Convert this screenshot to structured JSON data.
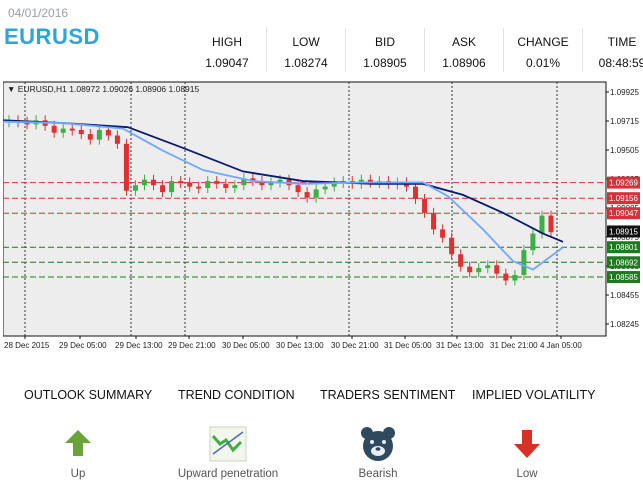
{
  "header": {
    "date": "04/01/2016",
    "symbol": "EURUSD",
    "quotes": [
      {
        "label": "HIGH",
        "value": "1.09047"
      },
      {
        "label": "LOW",
        "value": "1.08274"
      },
      {
        "label": "BID",
        "value": "1.08905"
      },
      {
        "label": "ASK",
        "value": "1.08906"
      },
      {
        "label": "CHANGE",
        "value": "0.01%"
      },
      {
        "label": "TIME",
        "value": "08:48:59"
      }
    ]
  },
  "chart": {
    "info_line": "▼ EURUSD,H1  1.08972 1.09026 1.08906 1.08915",
    "colors": {
      "up": "#3cb043",
      "down": "#e03030",
      "ma_fast": "#6fa8ff",
      "ma_slow": "#0a1a6e",
      "res_line": "#d6303a",
      "sup_line": "#1d7a1d",
      "bg": "#ffffff",
      "plot": "#ededed"
    },
    "price_labels": [
      "1.09925",
      "1.09715",
      "1.09505",
      "1.09295",
      "1.09085",
      "1.08875",
      "1.08665",
      "1.08455",
      "1.08245"
    ],
    "resistance_levels": [
      "1.09269",
      "1.09156",
      "1.09047"
    ],
    "support_levels": [
      "1.08801",
      "1.08692",
      "1.08585"
    ],
    "current_price": "1.08915",
    "time_labels": [
      "28 Dec 2015",
      "29 Dec 05:00",
      "29 Dec 13:00",
      "29 Dec 21:00",
      "30 Dec 05:00",
      "30 Dec 13:00",
      "30 Dec 21:00",
      "31 Dec 05:00",
      "31 Dec 13:00",
      "31 Dec 21:00",
      "4 Jan 05:00"
    ]
  },
  "tabs": [
    "OUTLOOK SUMMARY",
    "TREND CONDITION",
    "TRADERS SENTIMENT",
    "IMPLIED VOLATILITY"
  ],
  "indicators": [
    {
      "label": "Up",
      "icon": "arrow-up-icon",
      "color": "#6aa33a"
    },
    {
      "label": "Upward penetration",
      "icon": "trend-chart-icon",
      "color": "#3cb043"
    },
    {
      "label": "Bearish",
      "icon": "bear-icon",
      "color": "#2f4a5e"
    },
    {
      "label": "Low",
      "icon": "arrow-down-icon",
      "color": "#d93025"
    }
  ]
}
